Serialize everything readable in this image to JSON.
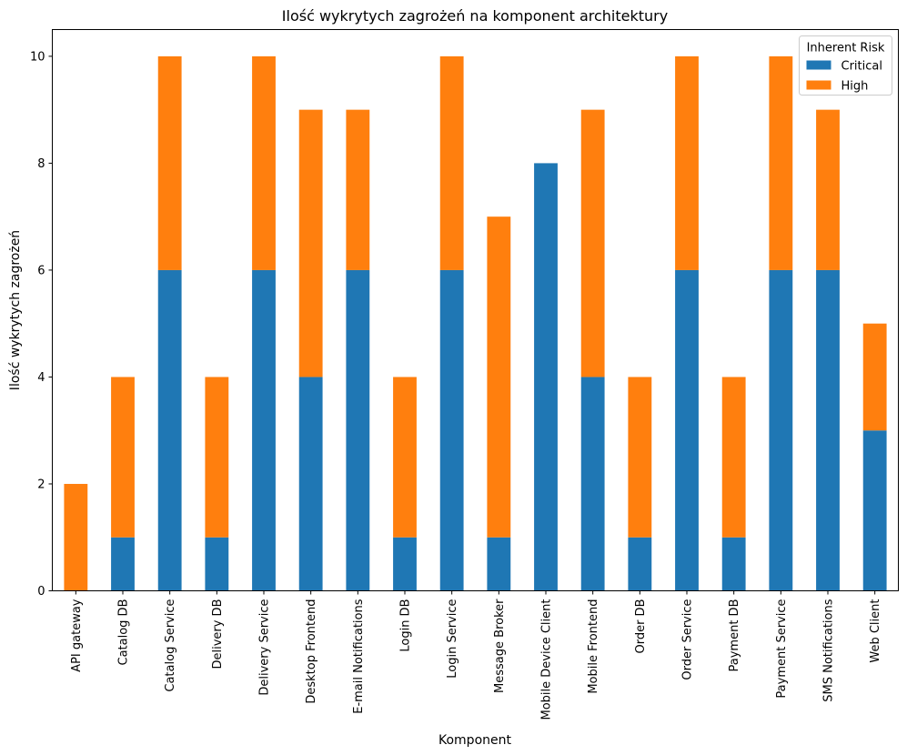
{
  "chart_data": {
    "type": "bar",
    "stacked": true,
    "title": "Ilość wykrytych zagrożeń na komponent architektury",
    "xlabel": "Komponent",
    "ylabel": "Ilość wykrytych zagrożeń",
    "ylim": [
      0,
      10.5
    ],
    "yticks": [
      0,
      2,
      4,
      6,
      8,
      10
    ],
    "grid": false,
    "legend": {
      "title": "Inherent Risk",
      "placement": "top-right"
    },
    "categories": [
      "API gateway",
      "Catalog DB",
      "Catalog Service",
      "Delivery DB",
      "Delivery Service",
      "Desktop Frontend",
      "E-mail Notifications",
      "Login DB",
      "Login Service",
      "Message Broker",
      "Mobile Device Client",
      "Mobile Frontend",
      "Order DB",
      "Order Service",
      "Payment DB",
      "Payment Service",
      "SMS Notifications",
      "Web Client"
    ],
    "series": [
      {
        "name": "Critical",
        "color": "#1f77b4",
        "values": [
          0,
          1,
          6,
          1,
          6,
          4,
          6,
          1,
          6,
          1,
          8,
          4,
          1,
          6,
          1,
          6,
          6,
          3
        ]
      },
      {
        "name": "High",
        "color": "#ff7f0e",
        "values": [
          2,
          3,
          4,
          3,
          4,
          5,
          3,
          3,
          4,
          6,
          0,
          5,
          3,
          4,
          3,
          4,
          3,
          2
        ]
      }
    ]
  }
}
